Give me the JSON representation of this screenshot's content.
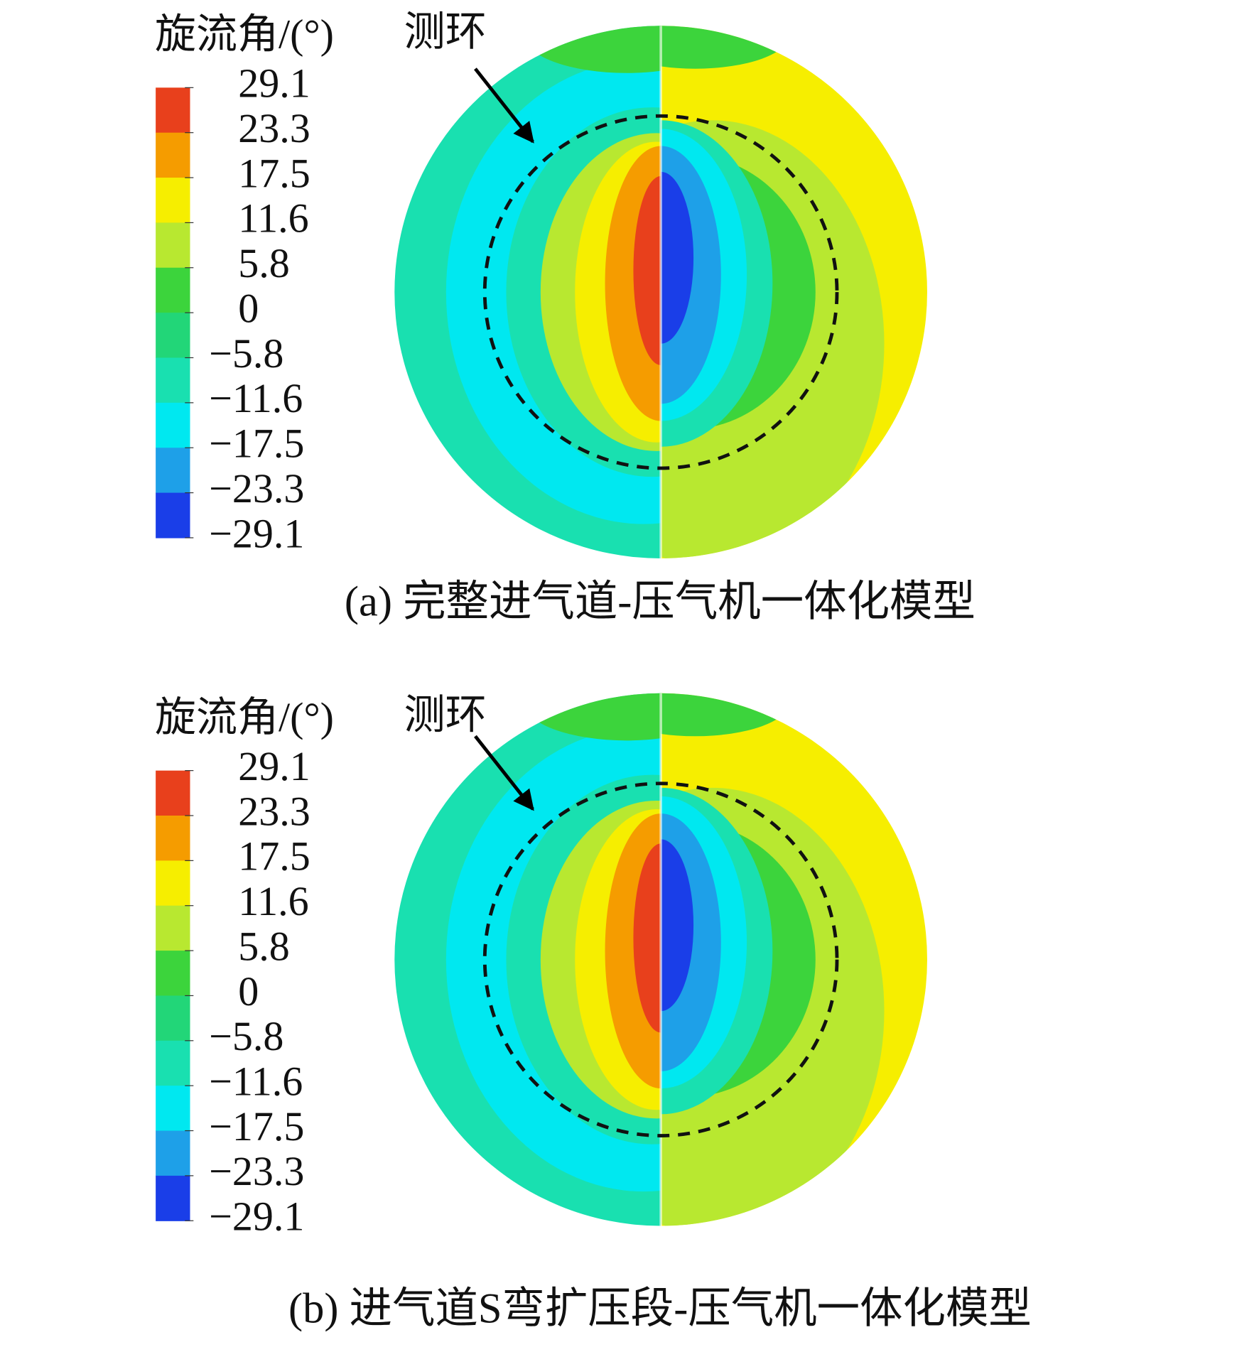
{
  "panels": [
    {
      "legend_title": "旋流角/(°)",
      "colorbar_labels": [
        "29.1",
        "23.3",
        "17.5",
        "11.6",
        "5.8",
        "0",
        "−5.8",
        "−11.6",
        "−17.5",
        "−23.3",
        "−29.1"
      ],
      "annotation": "测环",
      "caption": "(a) 完整进气道-压气机一体化模型"
    },
    {
      "legend_title": "旋流角/(°)",
      "colorbar_labels": [
        "29.1",
        "23.3",
        "17.5",
        "11.6",
        "5.8",
        "0",
        "−5.8",
        "−11.6",
        "−17.5",
        "−23.3",
        "−29.1"
      ],
      "annotation": "测环",
      "caption": "(b) 进气道S弯扩压段-压气机一体化模型"
    }
  ],
  "colorbar_colors": [
    "#e8401c",
    "#f59c00",
    "#f6ee00",
    "#b8e830",
    "#3cd43c",
    "#22d678",
    "#19e0b0",
    "#00e8f0",
    "#1ea0e8",
    "#1a3ee8"
  ]
}
